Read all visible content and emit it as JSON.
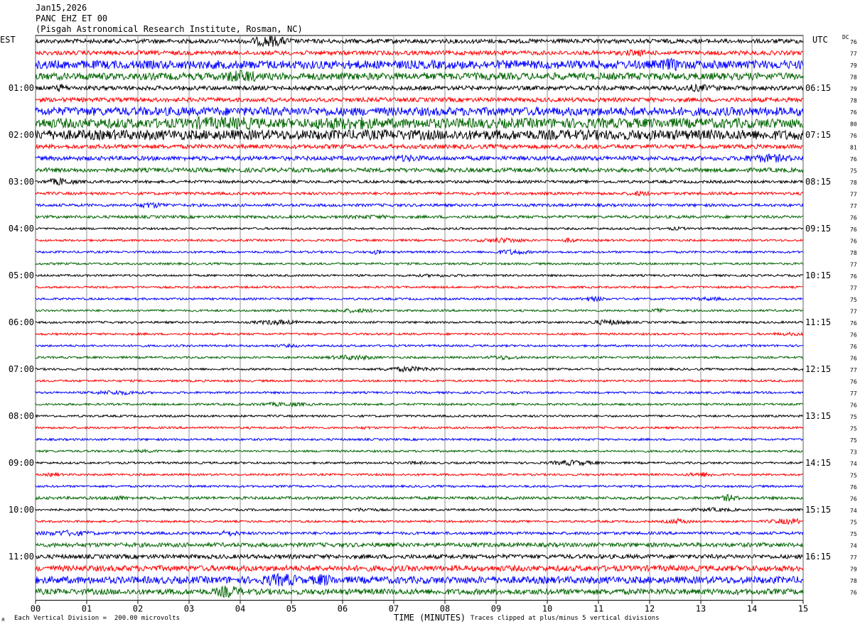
{
  "header": {
    "date": "Jan15,2026",
    "station": "PANC EHZ ET 00",
    "location": "(Pisgah Astronomical Research Institute, Rosman, NC)"
  },
  "left_timezone": "EST",
  "right_timezone": "UTC",
  "dc_label": "DC",
  "footer": {
    "left_note": "Each Vertical Division =  200.00 microvolts",
    "xlabel": "TIME (MINUTES)",
    "right_note": "Traces clipped at plus/minus 5 vertical divisions",
    "corner_mark": "ᴙ"
  },
  "chart_data": {
    "type": "line",
    "title": "PANC EHZ ET 00",
    "xlabel": "TIME (MINUTES)",
    "xlim": [
      0,
      15
    ],
    "x_ticks": [
      "00",
      "01",
      "02",
      "03",
      "04",
      "05",
      "06",
      "07",
      "08",
      "09",
      "10",
      "11",
      "12",
      "13",
      "14",
      "15"
    ],
    "trace_count": 48,
    "trace_colors": [
      "#000000",
      "#ff0000",
      "#0000ff",
      "#006400"
    ],
    "left_hour_labels": [
      "01:00",
      "02:00",
      "03:00",
      "04:00",
      "05:00",
      "06:00",
      "07:00",
      "08:00",
      "09:00",
      "10:00",
      "11:00"
    ],
    "right_hour_labels": [
      "06:15",
      "07:15",
      "08:15",
      "09:15",
      "10:15",
      "11:15",
      "12:15",
      "13:15",
      "14:15",
      "15:15",
      "16:15"
    ],
    "dc_values": [
      76,
      77,
      79,
      78,
      79,
      78,
      76,
      80,
      76,
      81,
      76,
      75,
      78,
      77,
      77,
      76,
      76,
      76,
      78,
      77,
      76,
      77,
      75,
      77,
      76,
      76,
      76,
      76,
      77,
      76,
      77,
      76,
      75,
      75,
      75,
      73,
      74,
      75,
      76,
      76,
      74,
      75,
      75,
      74,
      77,
      79,
      78,
      76
    ],
    "trace_amplitude": [
      3,
      3,
      6,
      5,
      3,
      3,
      6,
      7,
      7,
      3,
      3,
      3,
      2,
      2,
      2,
      2,
      1.5,
      1.5,
      1.5,
      1.5,
      1.5,
      1.5,
      1.5,
      1.5,
      1.5,
      1.5,
      1.5,
      1.5,
      1.5,
      1.5,
      1.5,
      1.5,
      1.5,
      1.5,
      1.5,
      1.5,
      1.5,
      1.5,
      1.5,
      2,
      1.5,
      1.5,
      2,
      3,
      3,
      4,
      5,
      4
    ]
  }
}
